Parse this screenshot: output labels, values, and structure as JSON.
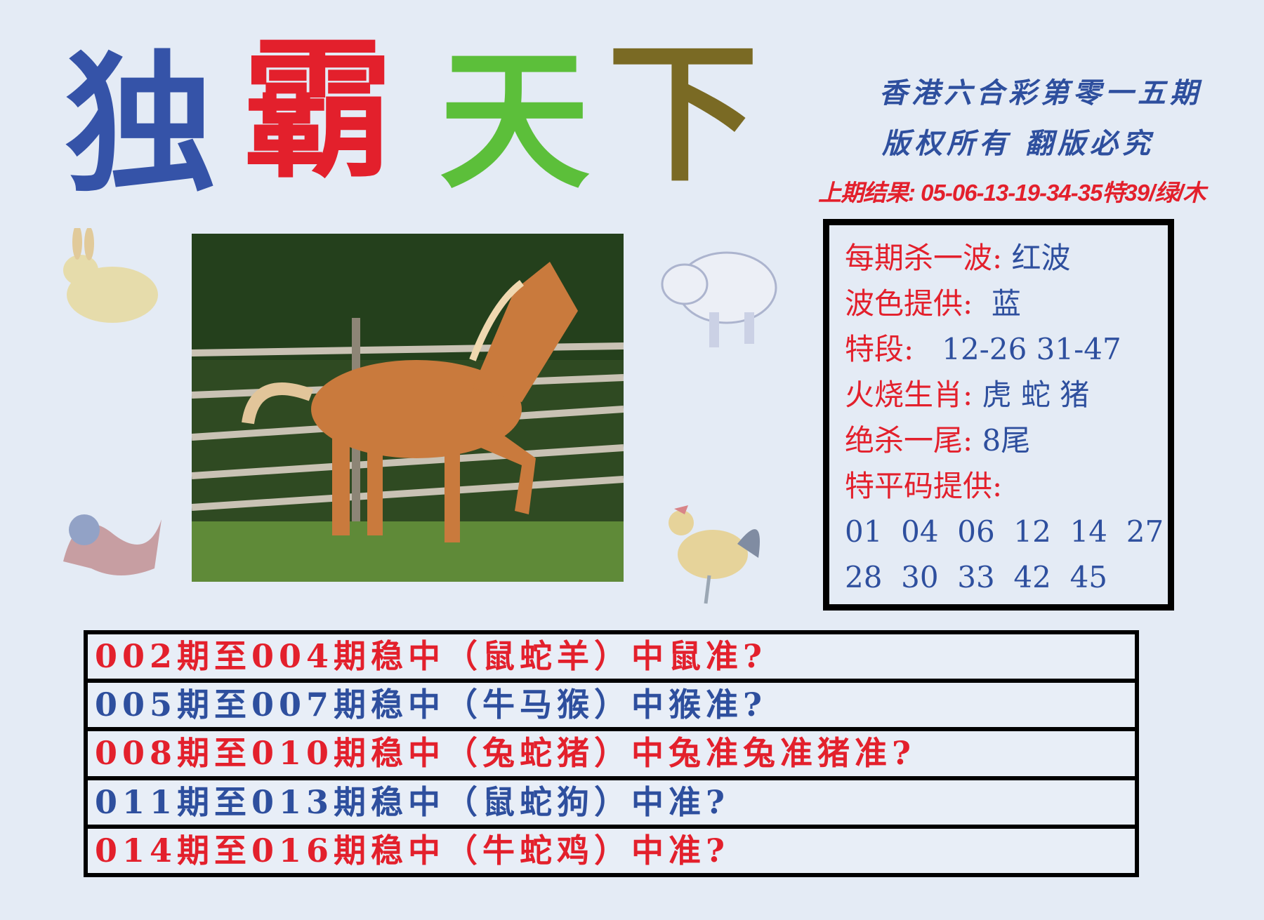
{
  "title": {
    "chars": [
      {
        "text": "独",
        "color": "#3553a8"
      },
      {
        "text": "霸",
        "color": "#e3202c"
      },
      {
        "text": "天",
        "color": "#5cbf3a"
      },
      {
        "text": "下",
        "color": "#7a6a24"
      }
    ]
  },
  "header": {
    "line1": "香港六合彩第零一五期",
    "line2": "版权所有 翻版必究",
    "last_result": "上期结果: 05-06-13-19-34-35特39/绿/木"
  },
  "colors": {
    "red": "#e3202c",
    "blue": "#2e4f9e",
    "background": "#e4ebf5"
  },
  "animals": [
    "rabbit",
    "pig",
    "dragon",
    "rooster"
  ],
  "info_box": {
    "lines": [
      {
        "label": "每期杀一波: ",
        "value": "红波"
      },
      {
        "label": "波色提供: ",
        "value": " 蓝"
      },
      {
        "label": "特段: ",
        "value": "  12-26 31-47"
      },
      {
        "label": "火烧生肖: ",
        "value": "虎 蛇 猪"
      },
      {
        "label": "绝杀一尾: ",
        "value": "8尾"
      },
      {
        "label": "特平码提供:",
        "value": ""
      }
    ],
    "numbers_row1": "01  04  06  12  14  27",
    "numbers_row2": "28  30  33  42  45"
  },
  "predictions": [
    {
      "text": "002期至004期稳中（鼠蛇羊）中鼠准?",
      "color": "red"
    },
    {
      "text": "005期至007期稳中（牛马猴）中猴准?",
      "color": "blue"
    },
    {
      "text": "008期至010期稳中（兔蛇猪）中兔准兔准猪准?",
      "color": "red"
    },
    {
      "text": "011期至013期稳中（鼠蛇狗）中准?",
      "color": "blue"
    },
    {
      "text": "014期至016期稳中（牛蛇鸡）中准?",
      "color": "red"
    }
  ]
}
